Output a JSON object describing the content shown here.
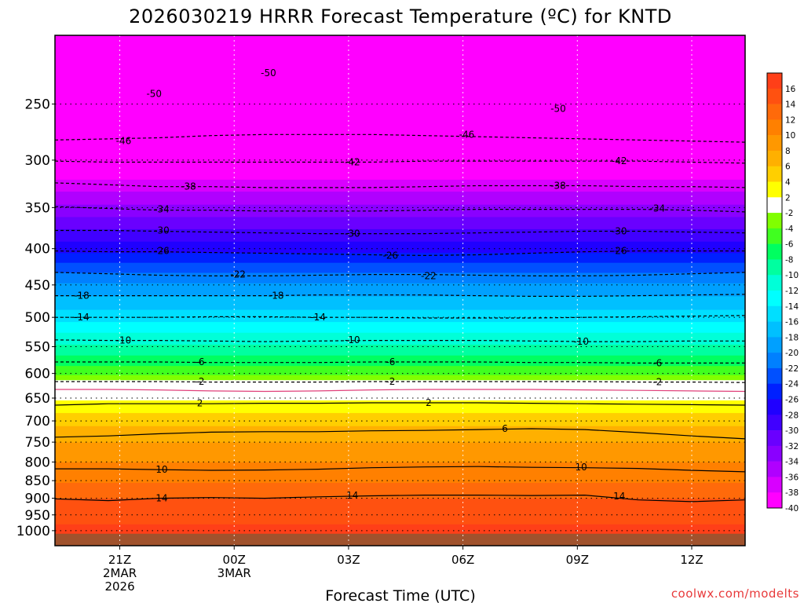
{
  "chart_data": {
    "type": "heatmap",
    "title": "2026030219 HRRR Forecast Temperature (ºC) for KNTD",
    "xlabel": "Forecast Time (UTC)",
    "ylabel": "",
    "credit": "coolwx.com/modelts",
    "y_scale": "log-pressure",
    "ylim_hPa": [
      1050,
      200
    ],
    "y_ticks": [
      250,
      300,
      350,
      400,
      450,
      500,
      550,
      600,
      650,
      700,
      750,
      800,
      850,
      900,
      950,
      1000
    ],
    "x_range_hours": [
      -1.7,
      16.4
    ],
    "x_ticks": [
      {
        "hour": 0,
        "lines": [
          "21Z",
          "2MAR",
          "2026"
        ]
      },
      {
        "hour": 3,
        "lines": [
          "00Z",
          "3MAR"
        ]
      },
      {
        "hour": 6,
        "lines": [
          "03Z"
        ]
      },
      {
        "hour": 9,
        "lines": [
          "06Z"
        ]
      },
      {
        "hour": 12,
        "lines": [
          "09Z"
        ]
      },
      {
        "hour": 15,
        "lines": [
          "12Z"
        ]
      }
    ],
    "grid": "dotted",
    "legend": "right colorbar",
    "colorbar_ticks": [
      "16",
      "14",
      "12",
      "10",
      "8",
      "6",
      "4",
      "2",
      "-2",
      "-4",
      "-6",
      "-8",
      "-10",
      "-12",
      "-14",
      "-16",
      "-18",
      "-20",
      "-22",
      "-24",
      "-26",
      "-28",
      "-30",
      "-32",
      "-34",
      "-36",
      "-38",
      "-40"
    ],
    "color_bands": [
      {
        "from": 16,
        "to": 18,
        "color": "#ff3f18"
      },
      {
        "from": 14,
        "to": 16,
        "color": "#ff5110"
      },
      {
        "from": 12,
        "to": 14,
        "color": "#ff6a0a"
      },
      {
        "from": 10,
        "to": 12,
        "color": "#ff8000"
      },
      {
        "from": 8,
        "to": 10,
        "color": "#ff9800"
      },
      {
        "from": 6,
        "to": 8,
        "color": "#ffb000"
      },
      {
        "from": 4,
        "to": 6,
        "color": "#ffcf00"
      },
      {
        "from": 2,
        "to": 4,
        "color": "#ffff00"
      },
      {
        "from": -2,
        "to": 2,
        "color": "#ffffff"
      },
      {
        "from": -4,
        "to": -2,
        "color": "#80ff00"
      },
      {
        "from": -6,
        "to": -4,
        "color": "#40ff20"
      },
      {
        "from": -8,
        "to": -6,
        "color": "#00ff60"
      },
      {
        "from": -10,
        "to": -8,
        "color": "#00ffa0"
      },
      {
        "from": -12,
        "to": -10,
        "color": "#00ffd8"
      },
      {
        "from": -14,
        "to": -12,
        "color": "#00ffff"
      },
      {
        "from": -16,
        "to": -14,
        "color": "#00dfff"
      },
      {
        "from": -18,
        "to": -16,
        "color": "#00c0ff"
      },
      {
        "from": -20,
        "to": -18,
        "color": "#00a0ff"
      },
      {
        "from": -22,
        "to": -20,
        "color": "#0080ff"
      },
      {
        "from": -24,
        "to": -22,
        "color": "#0050ff"
      },
      {
        "from": -26,
        "to": -24,
        "color": "#0020ff"
      },
      {
        "from": -28,
        "to": -26,
        "color": "#2000ff"
      },
      {
        "from": -30,
        "to": -28,
        "color": "#4000ff"
      },
      {
        "from": -32,
        "to": -30,
        "color": "#6a00ff"
      },
      {
        "from": -34,
        "to": -32,
        "color": "#8a00ff"
      },
      {
        "from": -36,
        "to": -34,
        "color": "#b000ff"
      },
      {
        "from": -38,
        "to": -36,
        "color": "#d800ff"
      },
      {
        "from": -40,
        "to": -38,
        "color": "#ff00ff"
      }
    ],
    "below_ground_color": "#a0522d",
    "profile_pressure_hPa": [
      1050,
      1040,
      1000,
      970,
      950,
      925,
      900,
      875,
      850,
      800,
      750,
      700,
      675,
      650,
      630,
      615,
      600,
      575,
      550,
      525,
      500,
      475,
      450,
      425,
      400,
      375,
      350,
      325,
      300,
      275,
      250,
      225,
      200
    ],
    "profile_temp_C": [
      17.5,
      17.5,
      16.5,
      15.8,
      15.2,
      14.6,
      14.0,
      12.8,
      11.8,
      10.0,
      8.0,
      5.4,
      3.5,
      1.7,
      0.5,
      -1.5,
      -4.5,
      -7.0,
      -9.6,
      -12.0,
      -14.8,
      -17.2,
      -19.6,
      -23.0,
      -26.8,
      -30.0,
      -33.5,
      -37.0,
      -41.5,
      -45.5,
      -49.0,
      -52.0,
      -55.0
    ],
    "contours": [
      {
        "label": "14",
        "style": "solid",
        "color": "#000000",
        "pressure_hPa": [
          902,
          907,
          900,
          898,
          900,
          896,
          893,
          891,
          891,
          892,
          891,
          905,
          910,
          905
        ]
      },
      {
        "label": "10",
        "style": "solid",
        "color": "#000000",
        "pressure_hPa": [
          818,
          818,
          820,
          822,
          821,
          819,
          815,
          813,
          812,
          814,
          815,
          817,
          822,
          826
        ]
      },
      {
        "label": "6",
        "style": "solid",
        "color": "#000000",
        "pressure_hPa": [
          738,
          735,
          730,
          726,
          725,
          725,
          723,
          722,
          720,
          718,
          720,
          727,
          735,
          742
        ]
      },
      {
        "label": "2",
        "style": "solid",
        "color": "#000000",
        "pressure_hPa": [
          665,
          662,
          662,
          662,
          661,
          661,
          660,
          660,
          660,
          661,
          662,
          663,
          664,
          665
        ]
      },
      {
        "label": "",
        "style": "solid",
        "color": "#e0407a",
        "pressure_hPa": [
          632,
          632,
          633,
          635,
          636,
          635,
          633,
          632,
          632,
          632,
          633,
          634,
          635,
          636
        ]
      },
      {
        "label": "-2",
        "style": "dashed",
        "color": "#000000",
        "pressure_hPa": [
          616,
          616,
          616,
          617,
          617,
          617,
          616,
          616,
          616,
          616,
          616,
          617,
          617,
          618
        ]
      },
      {
        "label": "-6",
        "style": "dashed",
        "color": "#000000",
        "pressure_hPa": [
          578,
          578,
          578,
          579,
          579,
          579,
          578,
          578,
          578,
          579,
          579,
          580,
          580,
          580
        ]
      },
      {
        "label": "-10",
        "style": "dashed",
        "color": "#000000",
        "pressure_hPa": [
          538,
          539,
          539,
          540,
          541,
          540,
          539,
          539,
          539,
          540,
          541,
          541,
          540,
          540
        ]
      },
      {
        "label": "-14",
        "style": "dashed",
        "color": "#000000",
        "pressure_hPa": [
          500,
          500,
          500,
          499,
          499,
          500,
          500,
          501,
          501,
          501,
          500,
          499,
          498,
          497
        ]
      },
      {
        "label": "-18",
        "style": "dashed",
        "color": "#000000",
        "pressure_hPa": [
          466,
          466,
          466,
          466,
          466,
          465,
          465,
          465,
          466,
          467,
          467,
          466,
          465,
          464
        ]
      },
      {
        "label": "-22",
        "style": "dashed",
        "color": "#000000",
        "pressure_hPa": [
          432,
          434,
          436,
          437,
          437,
          436,
          435,
          435,
          436,
          437,
          437,
          436,
          434,
          432
        ]
      },
      {
        "label": "-26",
        "style": "dashed",
        "color": "#000000",
        "pressure_hPa": [
          403,
          404,
          404,
          405,
          406,
          407,
          408,
          409,
          408,
          406,
          404,
          403,
          403,
          403
        ]
      },
      {
        "label": "-30",
        "style": "dashed",
        "color": "#000000",
        "pressure_hPa": [
          377,
          377,
          378,
          379,
          380,
          381,
          381,
          381,
          380,
          379,
          378,
          378,
          379,
          380
        ]
      },
      {
        "label": "-34",
        "style": "dashed",
        "color": "#000000",
        "pressure_hPa": [
          349,
          351,
          353,
          353,
          354,
          354,
          354,
          353,
          352,
          352,
          352,
          352,
          353,
          355
        ]
      },
      {
        "label": "-38",
        "style": "dashed",
        "color": "#000000",
        "pressure_hPa": [
          323,
          325,
          327,
          327,
          328,
          328,
          328,
          327,
          326,
          326,
          326,
          327,
          327,
          328
        ]
      },
      {
        "label": "-42",
        "style": "dashed",
        "color": "#000000",
        "pressure_hPa": [
          301,
          302,
          302,
          302,
          302,
          302,
          302,
          301,
          301,
          301,
          301,
          301,
          302,
          303
        ]
      },
      {
        "label": "-46",
        "style": "dashed",
        "color": "#000000",
        "pressure_hPa": [
          281,
          280,
          279,
          277,
          276,
          276,
          276,
          277,
          278,
          279,
          280,
          281,
          282,
          283
        ]
      }
    ],
    "contour_hours": [
      -1.7,
      -0.3,
      1.0,
      2.4,
      3.8,
      5.2,
      6.6,
      8.0,
      9.4,
      10.8,
      12.2,
      13.6,
      15.0,
      16.4
    ],
    "contour_labels": [
      {
        "text": "-50",
        "hour": 3.9,
        "pressure_hPa": 226
      },
      {
        "text": "-50",
        "hour": 0.9,
        "pressure_hPa": 242
      },
      {
        "text": "-50",
        "hour": 11.5,
        "pressure_hPa": 254
      },
      {
        "text": "-46",
        "hour": 0.1,
        "pressure_hPa": 282
      },
      {
        "text": "-46",
        "hour": 9.1,
        "pressure_hPa": 276
      },
      {
        "text": "-42",
        "hour": 6.1,
        "pressure_hPa": 302
      },
      {
        "text": "-42",
        "hour": 13.1,
        "pressure_hPa": 301
      },
      {
        "text": "-38",
        "hour": 1.8,
        "pressure_hPa": 327
      },
      {
        "text": "-38",
        "hour": 11.5,
        "pressure_hPa": 326
      },
      {
        "text": "-34",
        "hour": 1.1,
        "pressure_hPa": 352
      },
      {
        "text": "-34",
        "hour": 14.1,
        "pressure_hPa": 351
      },
      {
        "text": "-30",
        "hour": 1.1,
        "pressure_hPa": 377
      },
      {
        "text": "-30",
        "hour": 6.1,
        "pressure_hPa": 381
      },
      {
        "text": "-30",
        "hour": 13.1,
        "pressure_hPa": 378
      },
      {
        "text": "-26",
        "hour": 1.1,
        "pressure_hPa": 403
      },
      {
        "text": "-26",
        "hour": 7.1,
        "pressure_hPa": 409
      },
      {
        "text": "-26",
        "hour": 13.1,
        "pressure_hPa": 403
      },
      {
        "text": "-22",
        "hour": 3.1,
        "pressure_hPa": 435
      },
      {
        "text": "-22",
        "hour": 8.1,
        "pressure_hPa": 437
      },
      {
        "text": "-18",
        "hour": -1.0,
        "pressure_hPa": 466
      },
      {
        "text": "-18",
        "hour": 4.1,
        "pressure_hPa": 466
      },
      {
        "text": "-14",
        "hour": -1.0,
        "pressure_hPa": 500
      },
      {
        "text": "-14",
        "hour": 5.2,
        "pressure_hPa": 500
      },
      {
        "text": "-10",
        "hour": 0.1,
        "pressure_hPa": 539
      },
      {
        "text": "-10",
        "hour": 6.1,
        "pressure_hPa": 538
      },
      {
        "text": "-10",
        "hour": 12.1,
        "pressure_hPa": 541
      },
      {
        "text": "-6",
        "hour": 2.1,
        "pressure_hPa": 578
      },
      {
        "text": "-6",
        "hour": 7.1,
        "pressure_hPa": 578
      },
      {
        "text": "-6",
        "hour": 14.1,
        "pressure_hPa": 580
      },
      {
        "text": "-2",
        "hour": 2.1,
        "pressure_hPa": 616
      },
      {
        "text": "-2",
        "hour": 7.1,
        "pressure_hPa": 616
      },
      {
        "text": "-2",
        "hour": 14.1,
        "pressure_hPa": 617
      },
      {
        "text": "2",
        "hour": 2.1,
        "pressure_hPa": 661
      },
      {
        "text": "2",
        "hour": 8.1,
        "pressure_hPa": 660
      },
      {
        "text": "6",
        "hour": 10.1,
        "pressure_hPa": 718
      },
      {
        "text": "10",
        "hour": 1.1,
        "pressure_hPa": 820
      },
      {
        "text": "10",
        "hour": 12.1,
        "pressure_hPa": 814
      },
      {
        "text": "14",
        "hour": 1.1,
        "pressure_hPa": 900
      },
      {
        "text": "14",
        "hour": 6.1,
        "pressure_hPa": 892
      },
      {
        "text": "14",
        "hour": 13.1,
        "pressure_hPa": 894
      }
    ]
  }
}
